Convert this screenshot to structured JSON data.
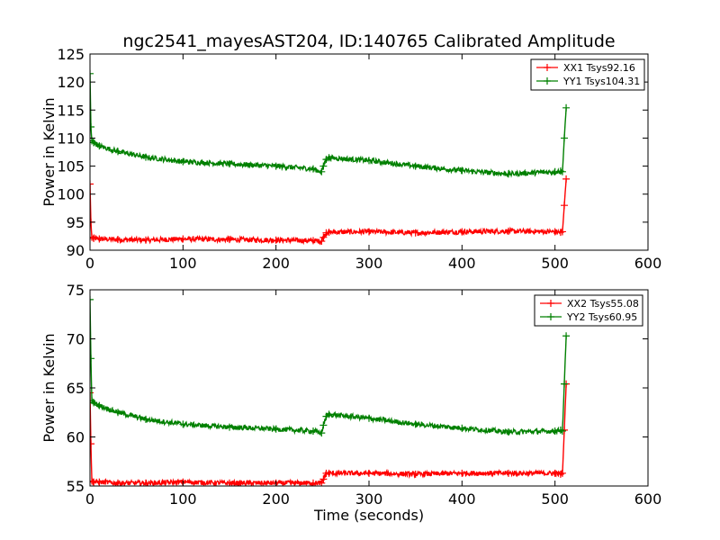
{
  "figure": {
    "title": "ngc2541_mayesAST204, ID:140765 Calibrated Amplitude"
  },
  "chart_data": [
    {
      "type": "line",
      "title": "ngc2541_mayesAST204, ID:140765 Calibrated Amplitude",
      "xlabel": "",
      "ylabel": "Power in Kelvin",
      "xlim": [
        0,
        600
      ],
      "ylim": [
        90,
        125
      ],
      "xticks": [
        "0",
        "100",
        "200",
        "300",
        "400",
        "500",
        "600"
      ],
      "yticks": [
        "90",
        "95",
        "100",
        "105",
        "110",
        "115",
        "120",
        "125"
      ],
      "legend_position": "top-right",
      "series": [
        {
          "name": "XX1 Tsys92.16",
          "color": "#ff0000",
          "x": [
            0,
            1,
            2,
            4,
            10,
            30,
            60,
            100,
            150,
            200,
            240,
            249,
            251,
            254,
            257,
            300,
            350,
            400,
            450,
            500,
            506,
            508,
            510,
            512
          ],
          "y": [
            101.8,
            95.0,
            92.3,
            92.1,
            92.0,
            91.9,
            91.8,
            92.0,
            91.9,
            91.8,
            91.7,
            91.6,
            92.3,
            93.1,
            93.2,
            93.3,
            93.1,
            93.3,
            93.4,
            93.3,
            93.2,
            93.3,
            98.0,
            102.7
          ]
        },
        {
          "name": "YY1 Tsys104.31",
          "color": "#008000",
          "x": [
            0,
            1,
            2,
            4,
            10,
            30,
            60,
            100,
            150,
            200,
            240,
            249,
            251,
            254,
            257,
            300,
            350,
            400,
            450,
            500,
            506,
            508,
            510,
            512
          ],
          "y": [
            121.5,
            112.0,
            109.5,
            109.2,
            108.6,
            107.6,
            106.6,
            105.8,
            105.4,
            105.0,
            104.5,
            104.0,
            105.0,
            106.2,
            106.5,
            106.0,
            105.0,
            104.2,
            103.6,
            104.0,
            104.1,
            104.0,
            110.0,
            115.4
          ]
        }
      ]
    },
    {
      "type": "line",
      "title": "",
      "xlabel": "Time (seconds)",
      "ylabel": "Power in Kelvin",
      "xlim": [
        0,
        600
      ],
      "ylim": [
        55,
        75
      ],
      "xticks": [
        "0",
        "100",
        "200",
        "300",
        "400",
        "500",
        "600"
      ],
      "yticks": [
        "55",
        "60",
        "65",
        "70",
        "75"
      ],
      "legend_position": "top-right",
      "series": [
        {
          "name": "XX2 Tsys55.08",
          "color": "#ff0000",
          "x": [
            0,
            1,
            2,
            4,
            10,
            30,
            60,
            100,
            150,
            200,
            240,
            249,
            251,
            254,
            257,
            300,
            350,
            400,
            450,
            500,
            506,
            508,
            510,
            512
          ],
          "y": [
            64.5,
            59.3,
            55.5,
            55.4,
            55.4,
            55.3,
            55.3,
            55.4,
            55.3,
            55.3,
            55.3,
            55.3,
            55.7,
            56.3,
            56.3,
            56.3,
            56.2,
            56.3,
            56.3,
            56.3,
            56.2,
            56.3,
            60.7,
            65.4
          ]
        },
        {
          "name": "YY2 Tsys60.95",
          "color": "#008000",
          "x": [
            0,
            1,
            2,
            4,
            10,
            30,
            60,
            100,
            150,
            200,
            240,
            249,
            251,
            254,
            257,
            300,
            350,
            400,
            450,
            500,
            506,
            508,
            510,
            512
          ],
          "y": [
            74.0,
            68.0,
            63.7,
            63.5,
            63.2,
            62.5,
            61.8,
            61.3,
            61.0,
            60.8,
            60.6,
            60.4,
            61.2,
            62.1,
            62.3,
            61.9,
            61.3,
            60.9,
            60.5,
            60.6,
            60.7,
            60.6,
            65.4,
            70.3
          ]
        }
      ]
    }
  ]
}
